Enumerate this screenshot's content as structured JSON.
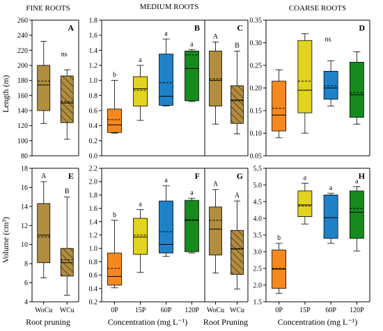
{
  "colors": {
    "WoCu": "#b08d40",
    "WCu": "#b08d40",
    "0P": "#f5881e",
    "15P": "#e2d31f",
    "60P": "#1f82c8",
    "120P": "#178a1e"
  },
  "row_titles": {
    "fine": "FINE ROOTS",
    "medium": "MEDIUM ROOTS",
    "coarse": "COARSE ROOTS"
  },
  "ylabel_top": "Length (m)",
  "ylabel_bottom": "Volume (cm³)",
  "xlabels": {
    "fine": "Root pruning",
    "medium_conc": "Concentration (mg L⁻¹)",
    "medium_pruning": "Root Pruning",
    "coarse": "Concentration (mg L⁻¹)"
  },
  "chart_data": [
    {
      "type": "box",
      "panel": "A",
      "group": "fine",
      "quantity": "length",
      "ylim": [
        80,
        260
      ],
      "yticks": [
        80,
        100,
        120,
        140,
        160,
        180,
        200,
        220,
        240,
        260
      ],
      "categories": [
        "WoCu",
        "WCu"
      ],
      "boxes": [
        {
          "cat": "WoCu",
          "min": 123,
          "q1": 140,
          "median": 174,
          "mean": 179,
          "q3": 200,
          "max": 232,
          "hatch": false
        },
        {
          "cat": "WCu",
          "min": 102,
          "q1": 124,
          "median": 150,
          "mean": 152,
          "q3": 186,
          "max": 194,
          "hatch": true
        }
      ],
      "annotations": [
        "ns"
      ]
    },
    {
      "type": "box",
      "panel": "B",
      "group": "medium",
      "quantity": "length",
      "ylim": [
        0.0,
        1.8
      ],
      "yticks": [
        0.0,
        0.2,
        0.4,
        0.6,
        0.8,
        1.0,
        1.2,
        1.4,
        1.6,
        1.8
      ],
      "categories": [
        "0P",
        "15P",
        "60P",
        "120P"
      ],
      "boxes": [
        {
          "cat": "0P",
          "min": 0.3,
          "q1": 0.31,
          "median": 0.41,
          "mean": 0.48,
          "q3": 0.62,
          "max": 1.0,
          "hatch": false
        },
        {
          "cat": "15P",
          "min": 0.47,
          "q1": 0.66,
          "median": 0.89,
          "mean": 0.87,
          "q3": 1.05,
          "max": 1.2,
          "hatch": false
        },
        {
          "cat": "60P",
          "min": 0.66,
          "q1": 0.67,
          "median": 0.79,
          "mean": 0.97,
          "q3": 1.35,
          "max": 1.55,
          "hatch": false
        },
        {
          "cat": "120P",
          "min": 0.72,
          "q1": 0.73,
          "median": 1.16,
          "mean": 1.34,
          "q3": 1.39,
          "max": 1.41,
          "hatch": false
        }
      ],
      "annotations": [
        "b",
        "a",
        "a",
        "a"
      ]
    },
    {
      "type": "box",
      "panel": "C",
      "group": "medium",
      "quantity": "length",
      "ylim": [
        0.0,
        1.8
      ],
      "categories": [
        "WoCu",
        "WCu"
      ],
      "boxes": [
        {
          "cat": "WoCu",
          "min": 0.42,
          "q1": 0.66,
          "median": 1.0,
          "mean": 1.02,
          "q3": 1.39,
          "max": 1.51,
          "hatch": false
        },
        {
          "cat": "WCu",
          "min": 0.29,
          "q1": 0.43,
          "median": 0.74,
          "mean": 0.73,
          "q3": 0.93,
          "max": 1.39,
          "hatch": true
        }
      ],
      "annotations": [
        "A",
        "B"
      ]
    },
    {
      "type": "box",
      "panel": "D",
      "group": "coarse",
      "quantity": "length",
      "ylim": [
        0.05,
        0.35
      ],
      "yticks": [
        0.05,
        0.1,
        0.15,
        0.2,
        0.25,
        0.3,
        0.35
      ],
      "categories": [
        "0P",
        "15P",
        "60P",
        "120P"
      ],
      "boxes": [
        {
          "cat": "0P",
          "min": 0.09,
          "q1": 0.105,
          "median": 0.14,
          "mean": 0.155,
          "q3": 0.215,
          "max": 0.24,
          "hatch": false
        },
        {
          "cat": "15P",
          "min": 0.1,
          "q1": 0.145,
          "median": 0.195,
          "mean": 0.215,
          "q3": 0.305,
          "max": 0.32,
          "hatch": false
        },
        {
          "cat": "60P",
          "min": 0.16,
          "q1": 0.175,
          "median": 0.2,
          "mean": 0.205,
          "q3": 0.237,
          "max": 0.26,
          "hatch": false
        },
        {
          "cat": "120P",
          "min": 0.12,
          "q1": 0.135,
          "median": 0.185,
          "mean": 0.19,
          "q3": 0.257,
          "max": 0.28,
          "hatch": false
        }
      ],
      "annotations": [
        "ns"
      ]
    },
    {
      "type": "box",
      "panel": "E",
      "group": "fine",
      "quantity": "volume",
      "ylim": [
        4,
        18
      ],
      "yticks": [
        4,
        6,
        8,
        10,
        12,
        14,
        16,
        18
      ],
      "categories": [
        "WoCu",
        "WCu"
      ],
      "boxes": [
        {
          "cat": "WoCu",
          "min": 6.5,
          "q1": 8.1,
          "median": 11.0,
          "mean": 10.8,
          "q3": 14.3,
          "max": 16.6,
          "hatch": false
        },
        {
          "cat": "WCu",
          "min": 4.7,
          "q1": 6.7,
          "median": 8.1,
          "mean": 8.4,
          "q3": 9.6,
          "max": 15.0,
          "hatch": true
        }
      ],
      "annotations": [
        "A",
        "B"
      ]
    },
    {
      "type": "box",
      "panel": "F",
      "group": "medium",
      "quantity": "volume",
      "ylim": [
        0.2,
        2.2
      ],
      "yticks": [
        0.2,
        0.4,
        0.6,
        0.8,
        1.0,
        1.2,
        1.4,
        1.6,
        1.8,
        2.0,
        2.2
      ],
      "categories": [
        "0P",
        "15P",
        "60P",
        "120P"
      ],
      "boxes": [
        {
          "cat": "0P",
          "min": 0.41,
          "q1": 0.45,
          "median": 0.58,
          "mean": 0.7,
          "q3": 0.93,
          "max": 1.42,
          "hatch": false
        },
        {
          "cat": "15P",
          "min": 0.64,
          "q1": 0.91,
          "median": 1.17,
          "mean": 1.2,
          "q3": 1.45,
          "max": 1.58,
          "hatch": false
        },
        {
          "cat": "60P",
          "min": 0.88,
          "q1": 0.93,
          "median": 1.06,
          "mean": 1.25,
          "q3": 1.71,
          "max": 1.94,
          "hatch": false
        },
        {
          "cat": "120P",
          "min": 0.93,
          "q1": 0.95,
          "median": 1.42,
          "mean": 1.43,
          "q3": 1.72,
          "max": 1.75,
          "hatch": false
        }
      ],
      "annotations": [
        "b",
        "a",
        "a",
        "a"
      ]
    },
    {
      "type": "box",
      "panel": "G",
      "group": "medium",
      "quantity": "volume",
      "ylim": [
        0.2,
        2.2
      ],
      "categories": [
        "WoCu",
        "WCu"
      ],
      "boxes": [
        {
          "cat": "WoCu",
          "min": 0.63,
          "q1": 0.9,
          "median": 1.29,
          "mean": 1.42,
          "q3": 1.62,
          "max": 1.88,
          "hatch": false
        },
        {
          "cat": "WCu",
          "min": 0.39,
          "q1": 0.61,
          "median": 0.99,
          "mean": 1.0,
          "q3": 1.27,
          "max": 1.71,
          "hatch": true
        }
      ],
      "annotations": [
        "A",
        "A"
      ]
    },
    {
      "type": "box",
      "panel": "H",
      "group": "coarse",
      "quantity": "volume",
      "ylim": [
        1.5,
        5.5
      ],
      "yticks": [
        1.5,
        2.0,
        2.5,
        3.0,
        3.5,
        4.0,
        4.5,
        5.0,
        5.5
      ],
      "categories": [
        "0P",
        "15P",
        "60P",
        "120P"
      ],
      "boxes": [
        {
          "cat": "0P",
          "min": 1.75,
          "q1": 1.9,
          "median": 2.48,
          "mean": 2.5,
          "q3": 3.05,
          "max": 3.25,
          "hatch": false
        },
        {
          "cat": "15P",
          "min": 3.83,
          "q1": 4.05,
          "median": 4.4,
          "mean": 4.37,
          "q3": 4.82,
          "max": 5.05,
          "hatch": false
        },
        {
          "cat": "60P",
          "min": 3.25,
          "q1": 3.4,
          "median": 4.02,
          "mean": 4.02,
          "q3": 4.7,
          "max": 4.75,
          "hatch": false
        },
        {
          "cat": "120P",
          "min": 3.02,
          "q1": 3.4,
          "median": 4.18,
          "mean": 4.3,
          "q3": 4.82,
          "max": 4.95,
          "hatch": false
        }
      ],
      "annotations": [
        "b",
        "a",
        "a",
        "a"
      ]
    }
  ]
}
